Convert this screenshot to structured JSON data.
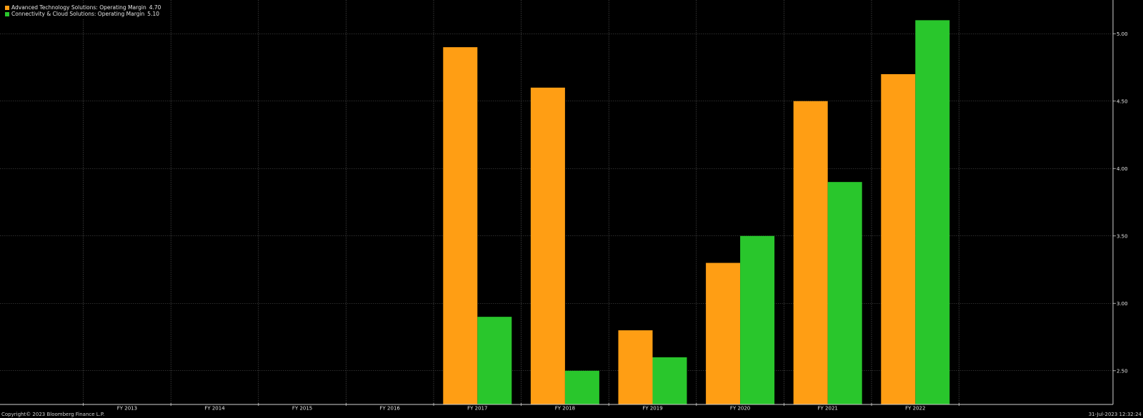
{
  "legend": {
    "items": [
      {
        "label": "Advanced Technology Solutions: Operating Margin",
        "value": "4.70",
        "color": "#FF9E14"
      },
      {
        "label": "Connectivity & Cloud Solutions: Operating Margin",
        "value": "5.10",
        "color": "#29C62C"
      }
    ]
  },
  "footer": {
    "copyright": "Copyright© 2023 Bloomberg Finance L.P.",
    "timestamp": "31-Jul-2023 12:32:24"
  },
  "chart_data": {
    "type": "bar",
    "categories": [
      "",
      "FY 2013",
      "FY 2014",
      "FY 2015",
      "FY 2016",
      "FY 2017",
      "FY 2018",
      "FY 2019",
      "FY 2020",
      "FY 2021",
      "FY 2022",
      ""
    ],
    "series": [
      {
        "name": "Advanced Technology Solutions: Operating Margin",
        "color": "#FF9E14",
        "values": [
          null,
          null,
          null,
          null,
          null,
          4.9,
          4.6,
          2.8,
          3.3,
          4.5,
          4.7,
          null
        ]
      },
      {
        "name": "Connectivity & Cloud Solutions: Operating Margin",
        "color": "#29C62C",
        "values": [
          null,
          null,
          null,
          null,
          null,
          2.9,
          2.5,
          2.6,
          3.5,
          3.9,
          5.1,
          null
        ]
      }
    ],
    "y_ticks": [
      "2.50",
      "3.00",
      "3.50",
      "4.00",
      "4.50",
      "5.00"
    ],
    "ylim": [
      2.25,
      5.25
    ],
    "y_axis_side": "right",
    "grid": true,
    "legend_position": "top-left",
    "background": "#000000",
    "grid_color": "#5a5a5a",
    "text_color": "#e6e6e6"
  }
}
